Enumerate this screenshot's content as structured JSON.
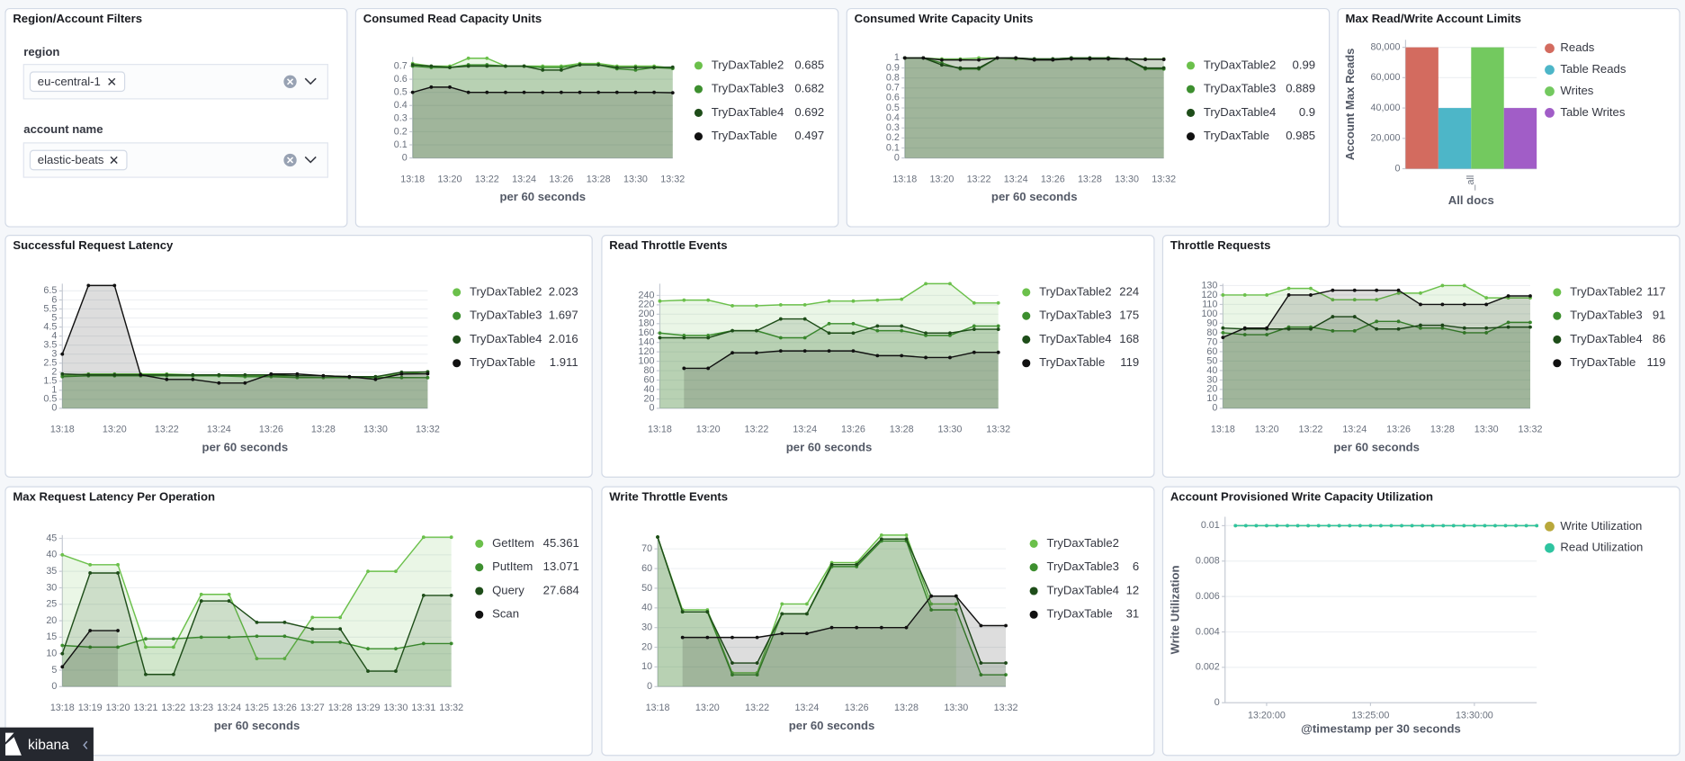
{
  "brand": "kibana",
  "filters": {
    "title": "Region/Account Filters",
    "controls": [
      {
        "label": "region",
        "selected": [
          "eu-central-1"
        ]
      },
      {
        "label": "account name",
        "selected": [
          "elastic-beats"
        ]
      }
    ]
  },
  "chart_data": [
    {
      "type": "area",
      "title": "Consumed Read Capacity Units",
      "xlabel": "per 60 seconds",
      "grid": true,
      "categories": [
        "13:18",
        null,
        "13:20",
        null,
        "13:22",
        null,
        "13:24",
        null,
        "13:26",
        null,
        "13:28",
        null,
        "13:30",
        null,
        "13:32"
      ],
      "ylim": [
        0,
        0.77
      ],
      "yticks": [
        0,
        0.1,
        0.2,
        0.3,
        0.4,
        0.5,
        0.6,
        0.7
      ],
      "series": [
        {
          "name": "TryDaxTable2",
          "color": "#6bc04b",
          "values": [
            0.72,
            0.7,
            0.7,
            0.76,
            0.76,
            0.7,
            0.7,
            0.7,
            0.7,
            0.72,
            0.72,
            0.7,
            0.7,
            0.7,
            0.685
          ]
        },
        {
          "name": "TryDaxTable3",
          "color": "#3d8f2f",
          "values": [
            0.7,
            0.69,
            0.69,
            0.71,
            0.71,
            0.7,
            0.7,
            0.69,
            0.69,
            0.71,
            0.71,
            0.68,
            0.67,
            0.69,
            0.682
          ]
        },
        {
          "name": "TryDaxTable4",
          "color": "#1e4d19",
          "values": [
            0.71,
            0.7,
            0.69,
            0.7,
            0.7,
            0.7,
            0.7,
            0.67,
            0.67,
            0.71,
            0.71,
            0.69,
            0.69,
            0.69,
            0.692
          ]
        },
        {
          "name": "TryDaxTable",
          "color": "#111111",
          "values": [
            0.5,
            0.54,
            0.54,
            0.5,
            0.5,
            0.5,
            0.5,
            0.5,
            0.5,
            0.5,
            0.5,
            0.5,
            0.5,
            0.5,
            0.497
          ]
        }
      ]
    },
    {
      "type": "area",
      "title": "Consumed Write Capacity Units",
      "xlabel": "per 60 seconds",
      "grid": true,
      "categories": [
        "13:18",
        null,
        "13:20",
        null,
        "13:22",
        null,
        "13:24",
        null,
        "13:26",
        null,
        "13:28",
        null,
        "13:30",
        null,
        "13:32"
      ],
      "ylim": [
        0,
        1.01
      ],
      "yticks": [
        0,
        0.1,
        0.2,
        0.3,
        0.4,
        0.5,
        0.6,
        0.7,
        0.8,
        0.9,
        1
      ],
      "series": [
        {
          "name": "TryDaxTable2",
          "color": "#6bc04b",
          "values": [
            1,
            1,
            0.99,
            0.99,
            1,
            1,
            0.99,
            0.99,
            0.99,
            1,
            0.99,
            1,
            0.99,
            0.99,
            0.99
          ]
        },
        {
          "name": "TryDaxTable3",
          "color": "#3d8f2f",
          "values": [
            1,
            1,
            0.95,
            0.89,
            0.89,
            1,
            1,
            0.99,
            0.99,
            1,
            1,
            1,
            0.99,
            0.89,
            0.889
          ]
        },
        {
          "name": "TryDaxTable4",
          "color": "#1e4d19",
          "values": [
            1,
            1,
            0.93,
            0.9,
            0.9,
            1,
            1,
            0.99,
            0.99,
            1,
            1,
            1,
            0.99,
            0.9,
            0.9
          ]
        },
        {
          "name": "TryDaxTable",
          "color": "#111111",
          "values": [
            1,
            1,
            0.98,
            0.98,
            0.98,
            1,
            1,
            0.98,
            0.98,
            0.99,
            0.99,
            0.99,
            0.99,
            0.985,
            0.985
          ]
        }
      ]
    },
    {
      "type": "bar",
      "title": "Max Read/Write Account Limits",
      "ylabel": "Account Max Reads",
      "xlabel": "All docs",
      "grid": true,
      "categories": [
        "_all"
      ],
      "ylim": [
        0,
        85000
      ],
      "yticks": [
        0,
        {
          "value": 20000,
          "label": "20,000"
        },
        {
          "value": 40000,
          "label": "40,000"
        },
        {
          "value": 60000,
          "label": "60,000"
        },
        {
          "value": 80000,
          "label": "80,000"
        }
      ],
      "series": [
        {
          "name": "Reads",
          "color": "#d36b5f",
          "values": [
            80000
          ]
        },
        {
          "name": "Table Reads",
          "color": "#4db6c8",
          "values": [
            40000
          ]
        },
        {
          "name": "Writes",
          "color": "#73c95f",
          "values": [
            80000
          ]
        },
        {
          "name": "Table Writes",
          "color": "#a15dc7",
          "values": [
            40000
          ]
        }
      ]
    },
    {
      "type": "area",
      "title": "Successful Request Latency",
      "xlabel": "per 60 seconds",
      "grid": true,
      "categories": [
        "13:18",
        null,
        "13:20",
        null,
        "13:22",
        null,
        "13:24",
        null,
        "13:26",
        null,
        "13:28",
        null,
        "13:30",
        null,
        "13:32"
      ],
      "ylim": [
        0,
        6.9
      ],
      "yticks": [
        0,
        0.5,
        1,
        1.5,
        2,
        2.5,
        3,
        3.5,
        4,
        4.5,
        5,
        5.5,
        6,
        6.5
      ],
      "series": [
        {
          "name": "TryDaxTable2",
          "color": "#6bc04b",
          "values": [
            1.8,
            1.9,
            1.9,
            1.9,
            1.9,
            1.85,
            1.85,
            1.8,
            1.8,
            1.8,
            1.8,
            1.75,
            1.75,
            1.9,
            2.023
          ]
        },
        {
          "name": "TryDaxTable3",
          "color": "#3d8f2f",
          "values": [
            1.75,
            1.8,
            1.8,
            1.8,
            1.8,
            1.8,
            1.8,
            1.75,
            1.75,
            1.7,
            1.7,
            1.7,
            1.7,
            1.7,
            1.697
          ]
        },
        {
          "name": "TryDaxTable4",
          "color": "#1e4d19",
          "values": [
            1.9,
            1.85,
            1.85,
            1.85,
            1.85,
            1.85,
            1.85,
            1.85,
            1.85,
            1.8,
            1.8,
            1.75,
            1.75,
            2.0,
            2.016
          ]
        },
        {
          "name": "TryDaxTable",
          "color": "#111111",
          "values": [
            3.0,
            6.8,
            6.8,
            1.85,
            1.6,
            1.6,
            1.4,
            1.4,
            1.9,
            1.9,
            1.8,
            1.75,
            1.6,
            1.9,
            1.911
          ]
        }
      ]
    },
    {
      "type": "area",
      "title": "Read Throttle Events",
      "xlabel": "per 60 seconds",
      "grid": true,
      "categories": [
        "13:18",
        null,
        "13:20",
        null,
        "13:22",
        null,
        "13:24",
        null,
        "13:26",
        null,
        "13:28",
        null,
        "13:30",
        null,
        "13:32"
      ],
      "ylim": [
        0,
        265
      ],
      "yticks": [
        0,
        20,
        40,
        60,
        80,
        100,
        120,
        140,
        160,
        180,
        200,
        220,
        240
      ],
      "series": [
        {
          "name": "TryDaxTable2",
          "color": "#6bc04b",
          "values": [
            228,
            230,
            230,
            218,
            218,
            220,
            220,
            228,
            228,
            230,
            232,
            265,
            265,
            224,
            224
          ]
        },
        {
          "name": "TryDaxTable3",
          "color": "#3d8f2f",
          "values": [
            160,
            155,
            155,
            165,
            165,
            150,
            150,
            180,
            180,
            165,
            165,
            155,
            155,
            175,
            175
          ]
        },
        {
          "name": "TryDaxTable4",
          "color": "#1e4d19",
          "values": [
            150,
            150,
            150,
            165,
            165,
            190,
            190,
            160,
            160,
            175,
            175,
            160,
            160,
            168,
            168
          ]
        },
        {
          "name": "TryDaxTable",
          "color": "#111111",
          "values": [
            null,
            85,
            85,
            118,
            118,
            122,
            122,
            122,
            122,
            112,
            112,
            108,
            108,
            119,
            119
          ]
        }
      ]
    },
    {
      "type": "area",
      "title": "Throttle Requests",
      "xlabel": "per 60 seconds",
      "grid": true,
      "categories": [
        "13:18",
        null,
        "13:20",
        null,
        "13:22",
        null,
        "13:24",
        null,
        "13:26",
        null,
        "13:28",
        null,
        "13:30",
        null,
        "13:32"
      ],
      "ylim": [
        0,
        132
      ],
      "yticks": [
        0,
        10,
        20,
        30,
        40,
        50,
        60,
        70,
        80,
        90,
        100,
        110,
        120,
        130
      ],
      "series": [
        {
          "name": "TryDaxTable2",
          "color": "#6bc04b",
          "values": [
            120,
            120,
            120,
            127,
            127,
            115,
            115,
            115,
            122,
            122,
            130,
            130,
            117,
            117,
            117
          ]
        },
        {
          "name": "TryDaxTable3",
          "color": "#3d8f2f",
          "values": [
            80,
            78,
            78,
            86,
            86,
            82,
            82,
            92,
            92,
            85,
            85,
            80,
            80,
            91,
            91
          ]
        },
        {
          "name": "TryDaxTable4",
          "color": "#1e4d19",
          "values": [
            85,
            84,
            84,
            84,
            84,
            97,
            97,
            84,
            84,
            88,
            88,
            85,
            85,
            86,
            86
          ]
        },
        {
          "name": "TryDaxTable",
          "color": "#111111",
          "values": [
            75,
            85,
            85,
            120,
            120,
            125,
            125,
            125,
            125,
            110,
            110,
            110,
            110,
            119,
            119
          ]
        }
      ]
    },
    {
      "type": "area",
      "title": "Max Request Latency Per Operation",
      "xlabel": "per 60 seconds",
      "grid": true,
      "categories": [
        "13:18",
        "13:19",
        "13:20",
        "13:21",
        "13:22",
        "13:23",
        "13:24",
        "13:25",
        "13:26",
        "13:27",
        "13:28",
        "13:29",
        "13:30",
        "13:31",
        "13:32"
      ],
      "ylim": [
        0,
        46
      ],
      "yticks": [
        0,
        5,
        10,
        15,
        20,
        25,
        30,
        35,
        40,
        45
      ],
      "series": [
        {
          "name": "GetItem",
          "color": "#6bc04b",
          "values": [
            40,
            37,
            37,
            12,
            12,
            28,
            28,
            8.5,
            8.5,
            21,
            21,
            35,
            35,
            45.361,
            45.361
          ]
        },
        {
          "name": "PutItem",
          "color": "#3d8f2f",
          "values": [
            12.5,
            12,
            12,
            14.5,
            14.5,
            15,
            15,
            15.3,
            15.3,
            13.5,
            13.5,
            11.5,
            11.5,
            13.071,
            13.071
          ]
        },
        {
          "name": "Query",
          "color": "#1e4d19",
          "values": [
            10,
            34.5,
            34.5,
            3.7,
            3.7,
            26,
            26,
            19.5,
            19.5,
            17.5,
            17.5,
            4.7,
            4.7,
            27.684,
            27.684
          ]
        },
        {
          "name": "Scan",
          "color": "#111111",
          "values": [
            6,
            17,
            17,
            null,
            null,
            null,
            null,
            null,
            null,
            null,
            null,
            null,
            null,
            null,
            null
          ]
        }
      ]
    },
    {
      "type": "area",
      "title": "Write Throttle Events",
      "xlabel": "per 60 seconds",
      "grid": true,
      "categories": [
        "13:18",
        null,
        "13:20",
        null,
        "13:22",
        null,
        "13:24",
        null,
        "13:26",
        null,
        "13:28",
        null,
        "13:30",
        null,
        "13:32"
      ],
      "ylim": [
        0,
        77
      ],
      "yticks": [
        0,
        10,
        20,
        30,
        40,
        50,
        60,
        70
      ],
      "series": [
        {
          "name": "TryDaxTable2",
          "color": "#6bc04b",
          "values": [
            76,
            39,
            39,
            7,
            7,
            42,
            42,
            63,
            63,
            77,
            77,
            42,
            42,
            null,
            null
          ]
        },
        {
          "name": "TryDaxTable3",
          "color": "#3d8f2f",
          "values": [
            76,
            38,
            38,
            6,
            6,
            37,
            37,
            61,
            61,
            74,
            74,
            39,
            39,
            6,
            6
          ]
        },
        {
          "name": "TryDaxTable4",
          "color": "#1e4d19",
          "values": [
            76,
            38,
            38,
            12,
            12,
            37,
            37,
            62,
            62,
            75,
            75,
            46,
            46,
            12,
            12
          ]
        },
        {
          "name": "TryDaxTable",
          "color": "#111111",
          "values": [
            null,
            25,
            25,
            25,
            25,
            27,
            27,
            30,
            30,
            30,
            30,
            46,
            46,
            31,
            31
          ]
        }
      ]
    },
    {
      "type": "line",
      "title": "Account Provisioned Write Capacity Utilization",
      "xlabel": "@timestamp per 30 seconds",
      "ylabel": "Write Utilization",
      "grid": true,
      "x": [
        "13:18:30",
        "13:19:00",
        "13:19:30",
        "13:20:00",
        "13:20:30",
        "13:21:00",
        "13:21:30",
        "13:22:00",
        "13:22:30",
        "13:23:00",
        "13:23:30",
        "13:24:00",
        "13:24:30",
        "13:25:00",
        "13:25:30",
        "13:26:00",
        "13:26:30",
        "13:27:00",
        "13:27:30",
        "13:28:00",
        "13:28:30",
        "13:29:00",
        "13:29:30",
        "13:30:00",
        "13:30:30",
        "13:31:00",
        "13:31:30",
        "13:32:00",
        "13:32:30",
        "13:33:00"
      ],
      "xlim": [
        "13:18:00",
        "13:33:00"
      ],
      "xticks": [
        "13:20:00",
        "13:25:00",
        "13:30:00"
      ],
      "ylim": [
        0,
        0.0105
      ],
      "yticks": [
        0,
        0.002,
        0.004,
        0.006,
        0.008,
        0.01
      ],
      "series": [
        {
          "name": "Write Utilization",
          "color": "#b9a83b",
          "values": [
            0.01,
            0.01,
            0.01,
            0.01,
            0.01,
            0.01,
            0.01,
            0.01,
            0.01,
            0.01,
            0.01,
            0.01,
            0.01,
            0.01,
            0.01,
            0.01,
            0.01,
            0.01,
            0.01,
            0.01,
            0.01,
            0.01,
            0.01,
            0.01,
            0.01,
            0.01,
            0.01,
            0.01,
            0.01,
            0.01
          ]
        },
        {
          "name": "Read Utilization",
          "color": "#2ec4a0",
          "values": [
            0.01,
            0.01,
            0.01,
            0.01,
            0.01,
            0.01,
            0.01,
            0.01,
            0.01,
            0.01,
            0.01,
            0.01,
            0.01,
            0.01,
            0.01,
            0.01,
            0.01,
            0.01,
            0.01,
            0.01,
            0.01,
            0.01,
            0.01,
            0.01,
            0.01,
            0.01,
            0.01,
            0.01,
            0.01,
            0.01
          ]
        }
      ]
    }
  ]
}
